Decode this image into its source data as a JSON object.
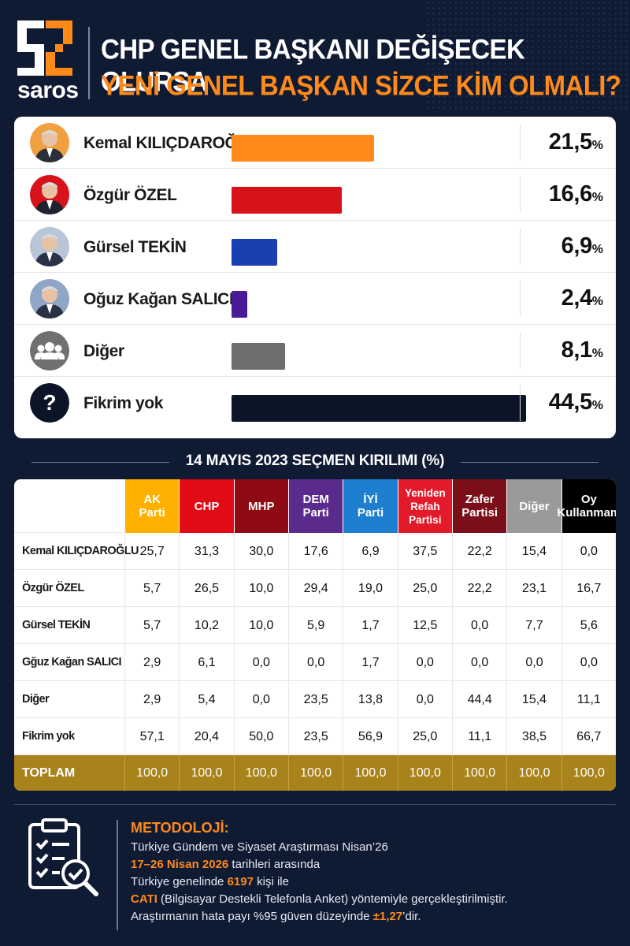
{
  "brand": {
    "name": "saros",
    "accent": "#ff8a1a"
  },
  "header": {
    "title_line1": "CHP GENEL BAŞKANI DEĞİŞECEK OLURSA",
    "title_line2": "YENİ GENEL BAŞKAN SİZCE KİM OLMALI?"
  },
  "chart_data": {
    "type": "bar",
    "orientation": "horizontal",
    "categories": [
      "Kemal KILIÇDAROĞLU",
      "Özgür ÖZEL",
      "Gürsel TEKİN",
      "Oğuz Kağan SALICI",
      "Diğer",
      "Fikrim yok"
    ],
    "values": [
      21.5,
      16.6,
      6.9,
      2.4,
      8.1,
      44.5
    ],
    "value_labels": [
      "21,5",
      "16,6",
      "6,9",
      "2,4",
      "8,1",
      "44,5"
    ],
    "unit": "%",
    "colors": [
      "#ff8a1a",
      "#d8121a",
      "#1a3fae",
      "#4b1a9a",
      "#6e6e6e",
      "#0c1428"
    ],
    "xlim": [
      0,
      44.5
    ],
    "grid": false
  },
  "breakdown": {
    "title": "14 MAYIS 2023 SEÇMEN KIRILIMI (%)",
    "columns": [
      {
        "label": "AK\nParti",
        "bg": "#ffb000",
        "fg": "#ffffff"
      },
      {
        "label": "CHP",
        "bg": "#e30a17",
        "fg": "#ffffff"
      },
      {
        "label": "MHP",
        "bg": "#8e0b14",
        "fg": "#ffffff"
      },
      {
        "label": "DEM\nParti",
        "bg": "#5a2a8c",
        "fg": "#ffffff"
      },
      {
        "label": "İYİ\nParti",
        "bg": "#1e7fd0",
        "fg": "#ffffff"
      },
      {
        "label": "Yeniden\nRefah\nPartisi",
        "bg": "#e31a2a",
        "fg": "#ffffff"
      },
      {
        "label": "Zafer\nPartisi",
        "bg": "#7a0f1a",
        "fg": "#ffffff"
      },
      {
        "label": "Diğer",
        "bg": "#9a9a9a",
        "fg": "#ffffff"
      },
      {
        "label": "Oy\nKullanmam",
        "bg": "#000000",
        "fg": "#ffffff"
      }
    ],
    "rows": [
      {
        "label": "Kemal KILIÇDAROĞLU",
        "values": [
          "25,7",
          "31,3",
          "30,0",
          "17,6",
          "6,9",
          "37,5",
          "22,2",
          "15,4",
          "0,0"
        ]
      },
      {
        "label": "Özgür ÖZEL",
        "values": [
          "5,7",
          "26,5",
          "10,0",
          "29,4",
          "19,0",
          "25,0",
          "22,2",
          "23,1",
          "16,7"
        ]
      },
      {
        "label": "Gürsel TEKİN",
        "values": [
          "5,7",
          "10,2",
          "10,0",
          "5,9",
          "1,7",
          "12,5",
          "0,0",
          "7,7",
          "5,6"
        ]
      },
      {
        "label": "Gğuz Kağan SALICI",
        "values": [
          "2,9",
          "6,1",
          "0,0",
          "0,0",
          "1,7",
          "0,0",
          "0,0",
          "0,0",
          "0,0"
        ]
      },
      {
        "label": "Diğer",
        "values": [
          "2,9",
          "5,4",
          "0,0",
          "23,5",
          "13,8",
          "0,0",
          "44,4",
          "15,4",
          "11,1"
        ]
      },
      {
        "label": "Fikrim yok",
        "values": [
          "57,1",
          "20,4",
          "50,0",
          "23,5",
          "56,9",
          "25,0",
          "11,1",
          "38,5",
          "66,7"
        ]
      }
    ],
    "total": {
      "label": "TOPLAM",
      "values": [
        "100,0",
        "100,0",
        "100,0",
        "100,0",
        "100,0",
        "100,0",
        "100,0",
        "100,0",
        "100,0"
      ]
    }
  },
  "methodology": {
    "title": "METODOLOJİ:",
    "line1": "Türkiye Gündem ve Siyaset Araştırması Nisan’26",
    "line2_hl": "17–26 Nisan 2026",
    "line2_rest": " tarihleri arasında",
    "line3_pre": "Türkiye genelinde ",
    "line3_hl": "6197",
    "line3_post": " kişi ile",
    "line4_hl": "CATI",
    "line4_rest": " (Bilgisayar Destekli Telefonla Anket) yöntemiyle gerçekleştirilmiştir.",
    "line5_pre": "Araştırmanın hata payı %95 güven düzeyinde ",
    "line5_hl": "±1,27",
    "line5_post": "’dir."
  },
  "icons": {
    "avatars": [
      "person-icon",
      "person-icon",
      "person-icon",
      "person-icon",
      "group-icon",
      "question-icon"
    ],
    "methodology": "clipboard-checklist-icon"
  }
}
